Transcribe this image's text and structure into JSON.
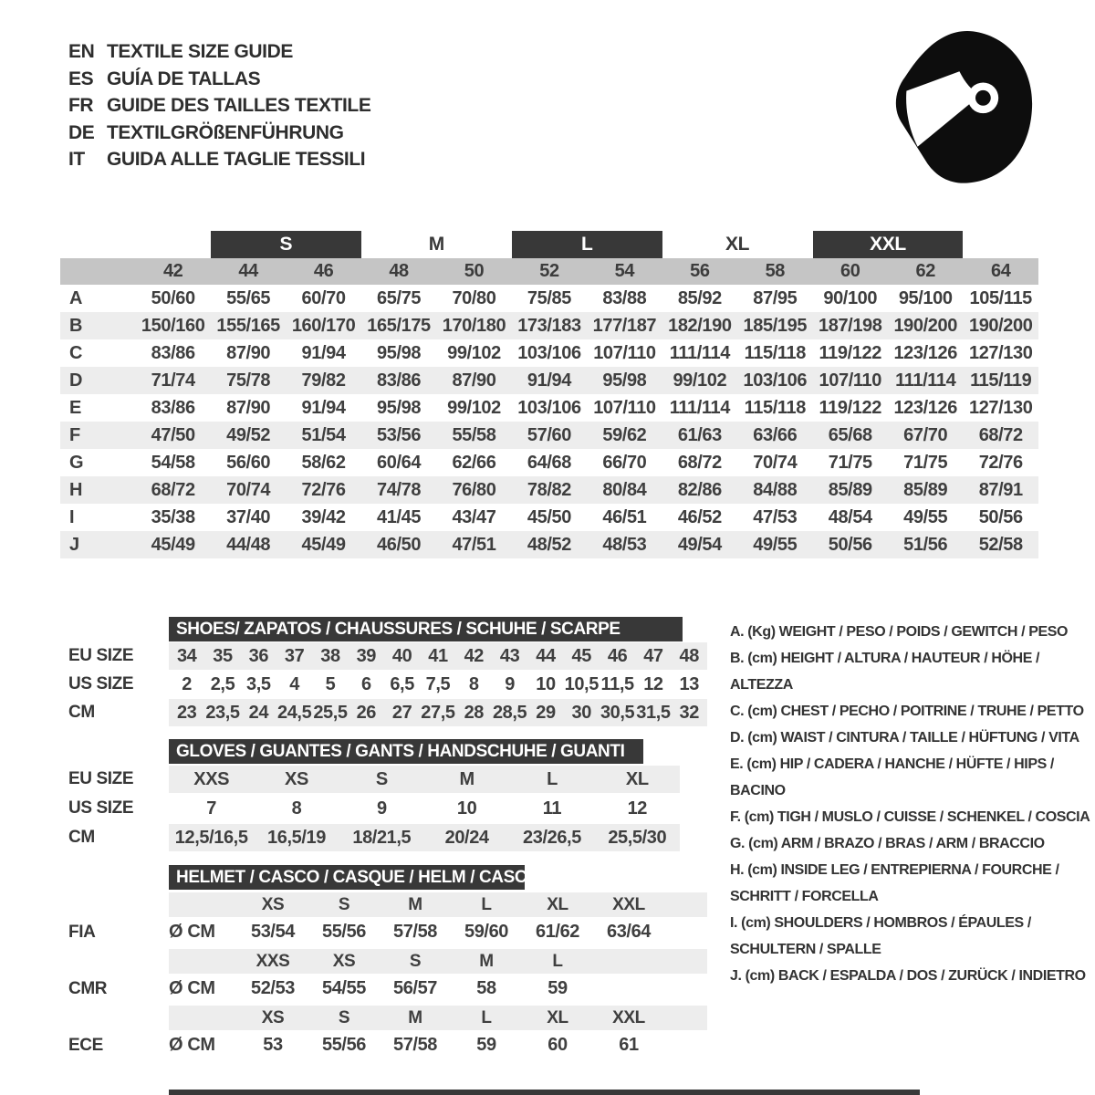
{
  "colors": {
    "dark_bar": "#383838",
    "size_header_bg": "#c5c5c5",
    "row_stripe": "#ededed",
    "icon": "#0d0d0d"
  },
  "header": {
    "languages": [
      {
        "code": "EN",
        "label": "TEXTILE SIZE GUIDE"
      },
      {
        "code": "ES",
        "label": "GUÍA DE TALLAS"
      },
      {
        "code": "FR",
        "label": "GUIDE DES TAILLES TEXTILE"
      },
      {
        "code": "DE",
        "label": "TEXTILGRÖßENFÜHRUNG"
      },
      {
        "code": "IT",
        "label": "GUIDA ALLE TAGLIE TESSILI"
      }
    ],
    "icon": "racing-helmet-icon"
  },
  "textile_table": {
    "group_row": [
      {
        "label": "S",
        "dark": true
      },
      {
        "label": "M",
        "dark": false
      },
      {
        "label": "L",
        "dark": true
      },
      {
        "label": "XL",
        "dark": false
      },
      {
        "label": "XXL",
        "dark": true
      }
    ],
    "size_columns": [
      "42",
      "44",
      "46",
      "48",
      "50",
      "52",
      "54",
      "56",
      "58",
      "60",
      "62",
      "64"
    ],
    "rows": [
      {
        "key": "A",
        "values": [
          "50/60",
          "55/65",
          "60/70",
          "65/75",
          "70/80",
          "75/85",
          "83/88",
          "85/92",
          "87/95",
          "90/100",
          "95/100",
          "105/115"
        ]
      },
      {
        "key": "B",
        "values": [
          "150/160",
          "155/165",
          "160/170",
          "165/175",
          "170/180",
          "173/183",
          "177/187",
          "182/190",
          "185/195",
          "187/198",
          "190/200",
          "190/200"
        ]
      },
      {
        "key": "C",
        "values": [
          "83/86",
          "87/90",
          "91/94",
          "95/98",
          "99/102",
          "103/106",
          "107/110",
          "111/114",
          "115/118",
          "119/122",
          "123/126",
          "127/130"
        ]
      },
      {
        "key": "D",
        "values": [
          "71/74",
          "75/78",
          "79/82",
          "83/86",
          "87/90",
          "91/94",
          "95/98",
          "99/102",
          "103/106",
          "107/110",
          "111/114",
          "115/119"
        ]
      },
      {
        "key": "E",
        "values": [
          "83/86",
          "87/90",
          "91/94",
          "95/98",
          "99/102",
          "103/106",
          "107/110",
          "111/114",
          "115/118",
          "119/122",
          "123/126",
          "127/130"
        ]
      },
      {
        "key": "F",
        "values": [
          "47/50",
          "49/52",
          "51/54",
          "53/56",
          "55/58",
          "57/60",
          "59/62",
          "61/63",
          "63/66",
          "65/68",
          "67/70",
          "68/72"
        ]
      },
      {
        "key": "G",
        "values": [
          "54/58",
          "56/60",
          "58/62",
          "60/64",
          "62/66",
          "64/68",
          "66/70",
          "68/72",
          "70/74",
          "71/75",
          "71/75",
          "72/76"
        ]
      },
      {
        "key": "H",
        "values": [
          "68/72",
          "70/74",
          "72/76",
          "74/78",
          "76/80",
          "78/82",
          "80/84",
          "82/86",
          "84/88",
          "85/89",
          "85/89",
          "87/91"
        ]
      },
      {
        "key": "I",
        "values": [
          "35/38",
          "37/40",
          "39/42",
          "41/45",
          "43/47",
          "45/50",
          "46/51",
          "46/52",
          "47/53",
          "48/54",
          "49/55",
          "50/56"
        ]
      },
      {
        "key": "J",
        "values": [
          "45/49",
          "44/48",
          "45/49",
          "46/50",
          "47/51",
          "48/52",
          "48/53",
          "49/54",
          "49/55",
          "50/56",
          "51/56",
          "52/58"
        ]
      }
    ]
  },
  "shoes_table": {
    "title": "SHOES/ ZAPATOS / CHAUSSURES / SCHUHE / SCARPE",
    "rows": [
      {
        "label": "EU SIZE",
        "gray": true,
        "values": [
          "34",
          "35",
          "36",
          "37",
          "38",
          "39",
          "40",
          "41",
          "42",
          "43",
          "44",
          "45",
          "46",
          "47",
          "48"
        ]
      },
      {
        "label": "US SIZE",
        "gray": false,
        "values": [
          "2",
          "2,5",
          "3,5",
          "4",
          "5",
          "6",
          "6,5",
          "7,5",
          "8",
          "9",
          "10",
          "10,5",
          "11,5",
          "12",
          "13"
        ]
      },
      {
        "label": "CM",
        "gray": true,
        "values": [
          "23",
          "23,5",
          "24",
          "24,5",
          "25,5",
          "26",
          "27",
          "27,5",
          "28",
          "28,5",
          "29",
          "30",
          "30,5",
          "31,5",
          "32"
        ]
      }
    ]
  },
  "gloves_table": {
    "title": "GLOVES / GUANTES / GANTS / HANDSCHUHE / GUANTI",
    "rows": [
      {
        "label": "EU SIZE",
        "gray": true,
        "values": [
          "XXS",
          "XS",
          "S",
          "M",
          "L",
          "XL"
        ]
      },
      {
        "label": "US SIZE",
        "gray": false,
        "values": [
          "7",
          "8",
          "9",
          "10",
          "11",
          "12"
        ]
      },
      {
        "label": "CM",
        "gray": true,
        "values": [
          "12,5/16,5",
          "16,5/19",
          "18/21,5",
          "20/24",
          "23/26,5",
          "25,5/30"
        ]
      }
    ]
  },
  "helmet_table": {
    "title": "HELMET / CASCO / CASQUE / HELM / CASCO",
    "sections": [
      {
        "standard": "FIA",
        "unit": "Ø CM",
        "sizes": [
          "XS",
          "S",
          "M",
          "L",
          "XL",
          "XXL"
        ],
        "values": [
          "53/54",
          "55/56",
          "57/58",
          "59/60",
          "61/62",
          "63/64"
        ]
      },
      {
        "standard": "CMR",
        "unit": "Ø CM",
        "sizes": [
          "XXS",
          "XS",
          "S",
          "M",
          "L",
          ""
        ],
        "values": [
          "52/53",
          "54/55",
          "56/57",
          "58",
          "59",
          ""
        ]
      },
      {
        "standard": "ECE",
        "unit": "Ø CM",
        "sizes": [
          "XS",
          "S",
          "M",
          "L",
          "XL",
          "XXL"
        ],
        "values": [
          "53",
          "55/56",
          "57/58",
          "59",
          "60",
          "61"
        ]
      }
    ]
  },
  "legend": {
    "items": [
      "A. (Kg) WEIGHT / PESO / POIDS / GEWITCH / PESO",
      "B. (cm) HEIGHT / ALTURA / HAUTEUR / HÖHE / ALTEZZA",
      "C. (cm) CHEST / PECHO / POITRINE / TRUHE / PETTO",
      "D. (cm) WAIST / CINTURA / TAILLE / HÜFTUNG / VITA",
      "E. (cm) HIP / CADERA / HANCHE / HÜFTE / HIPS / BACINO",
      "F. (cm) TIGH / MUSLO / CUISSE / SCHENKEL / COSCIA",
      "G. (cm) ARM / BRAZO / BRAS / ARM / BRACCIO",
      "H. (cm) INSIDE LEG / ENTREPIERNA / FOURCHE / SCHRITT / FORCELLA",
      "I. (cm) SHOULDERS / HOMBROS / ÉPAULES / SCHULTERN / SPALLE",
      "J. (cm) BACK / ESPALDA / DOS / ZURÜCK / INDIETRO"
    ]
  }
}
